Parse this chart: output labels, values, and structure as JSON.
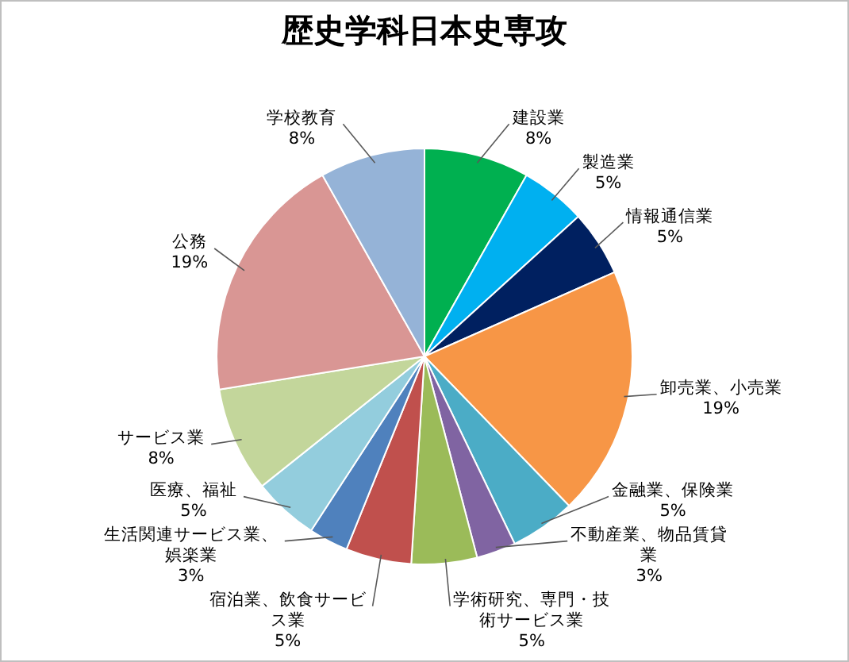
{
  "chart_data": {
    "type": "pie",
    "title": "歴史学科日本史専攻",
    "categories": [
      "建設業",
      "製造業",
      "情報通信業",
      "卸売業、小売業",
      "金融業、保険業",
      "不動産業、物品賃貸業",
      "学術研究、専門・技術サービス業",
      "宿泊業、飲食サービス業",
      "生活関連サービス業、娯楽業",
      "医療、福祉",
      "サービス業",
      "公務",
      "学校教育"
    ],
    "values": [
      8,
      5,
      5,
      19,
      5,
      3,
      5,
      5,
      3,
      5,
      8,
      19,
      8
    ],
    "value_labels": [
      "8%",
      "5%",
      "5%",
      "19%",
      "5%",
      "3%",
      "5%",
      "5%",
      "3%",
      "5%",
      "8%",
      "19%",
      "8%"
    ],
    "colors": [
      "#00b050",
      "#00b0f0",
      "#002060",
      "#f79646",
      "#4bacc6",
      "#8064a2",
      "#9bbb59",
      "#c0504d",
      "#4f81bd",
      "#93cddd",
      "#c3d69b",
      "#d99694",
      "#95b3d7"
    ],
    "legend": false
  }
}
